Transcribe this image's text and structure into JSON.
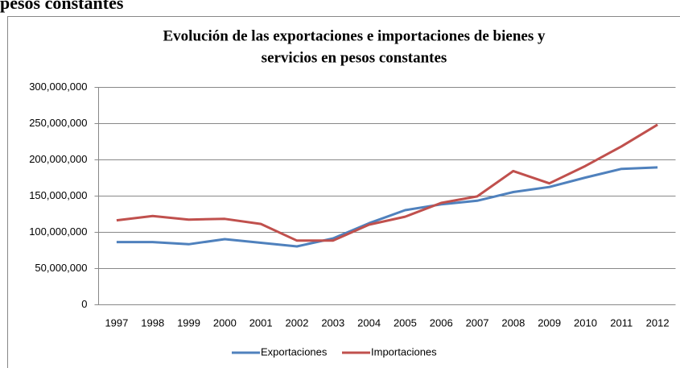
{
  "header": "pesos constantes",
  "chart_data": {
    "type": "line",
    "title": [
      "Evolución de las exportaciones e importaciones de bienes y",
      "servicios en pesos constantes"
    ],
    "categories": [
      "1997",
      "1998",
      "1999",
      "2000",
      "2001",
      "2002",
      "2003",
      "2004",
      "2005",
      "2006",
      "2007",
      "2008",
      "2009",
      "2010",
      "2011",
      "2012"
    ],
    "series": [
      {
        "name": "Exportaciones",
        "color": "#4f81bd",
        "values": [
          86000000,
          86000000,
          83000000,
          90000000,
          85000000,
          80000000,
          91000000,
          112000000,
          130000000,
          138000000,
          143000000,
          155000000,
          162000000,
          175000000,
          187000000,
          189000000
        ]
      },
      {
        "name": "Importaciones",
        "color": "#c0504d",
        "values": [
          116000000,
          122000000,
          117000000,
          118000000,
          111000000,
          88000000,
          88000000,
          110000000,
          121000000,
          140000000,
          149000000,
          184000000,
          167000000,
          191000000,
          218000000,
          248000000
        ]
      }
    ],
    "ylim": [
      0,
      300000000
    ],
    "yticks": [
      0,
      {
        "value": 50000000,
        "label": "50,000,000"
      },
      {
        "value": 100000000,
        "label": "100,000,000"
      },
      {
        "value": 150000000,
        "label": "150,000,000"
      },
      {
        "value": 200000000,
        "label": "200,000,000"
      },
      {
        "value": 250000000,
        "label": "250,000,000"
      },
      {
        "value": 300000000,
        "label": "300,000,000"
      }
    ],
    "grid": true,
    "legend": "bottom"
  }
}
